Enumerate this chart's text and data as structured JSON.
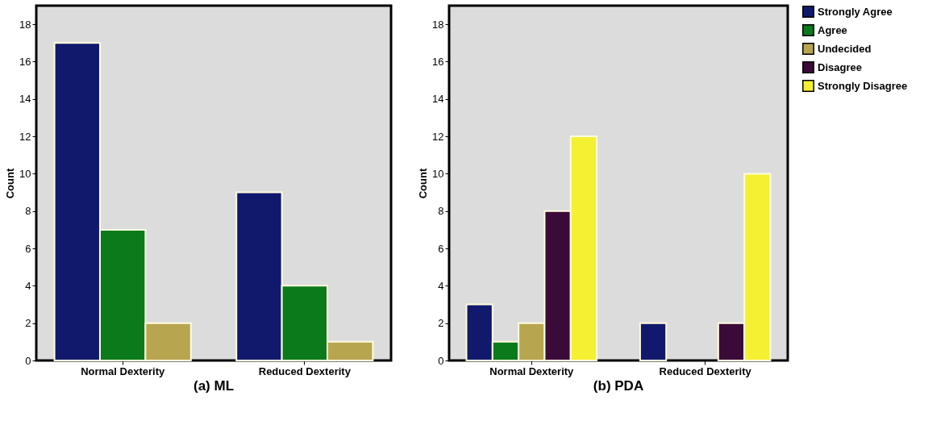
{
  "chart_data": [
    {
      "type": "bar",
      "title": "(a) ML",
      "ylabel": "Count",
      "categories": [
        "Normal Dexterity",
        "Reduced Dexterity"
      ],
      "ylim": [
        0,
        19
      ],
      "yticks": [
        0,
        2,
        4,
        6,
        8,
        10,
        12,
        14,
        16,
        18
      ],
      "grid": false,
      "legend": false,
      "series": [
        {
          "color": "#10196b",
          "values": [
            17,
            9
          ]
        },
        {
          "color": "#0a7a1a",
          "values": [
            7,
            4
          ]
        },
        {
          "color": "#b8a550",
          "values": [
            2,
            1
          ]
        }
      ]
    },
    {
      "type": "bar",
      "title": "(b) PDA",
      "ylabel": "Count",
      "categories": [
        "Normal Dexterity",
        "Reduced Dexterity"
      ],
      "ylim": [
        0,
        19
      ],
      "yticks": [
        0,
        2,
        4,
        6,
        8,
        10,
        12,
        14,
        16,
        18
      ],
      "grid": false,
      "legend": "top right",
      "series": [
        {
          "name": "Strongly Agree",
          "color": "#10196b",
          "values": [
            3,
            2
          ]
        },
        {
          "name": "Agree",
          "color": "#0a7a1a",
          "values": [
            1,
            null
          ]
        },
        {
          "name": "Undecided",
          "color": "#b8a550",
          "values": [
            2,
            null
          ]
        },
        {
          "name": "Disagree",
          "color": "#3a0a38",
          "values": [
            8,
            2
          ]
        },
        {
          "name": "Strongly Disagree",
          "color": "#f5f032",
          "values": [
            12,
            10
          ]
        }
      ]
    }
  ]
}
